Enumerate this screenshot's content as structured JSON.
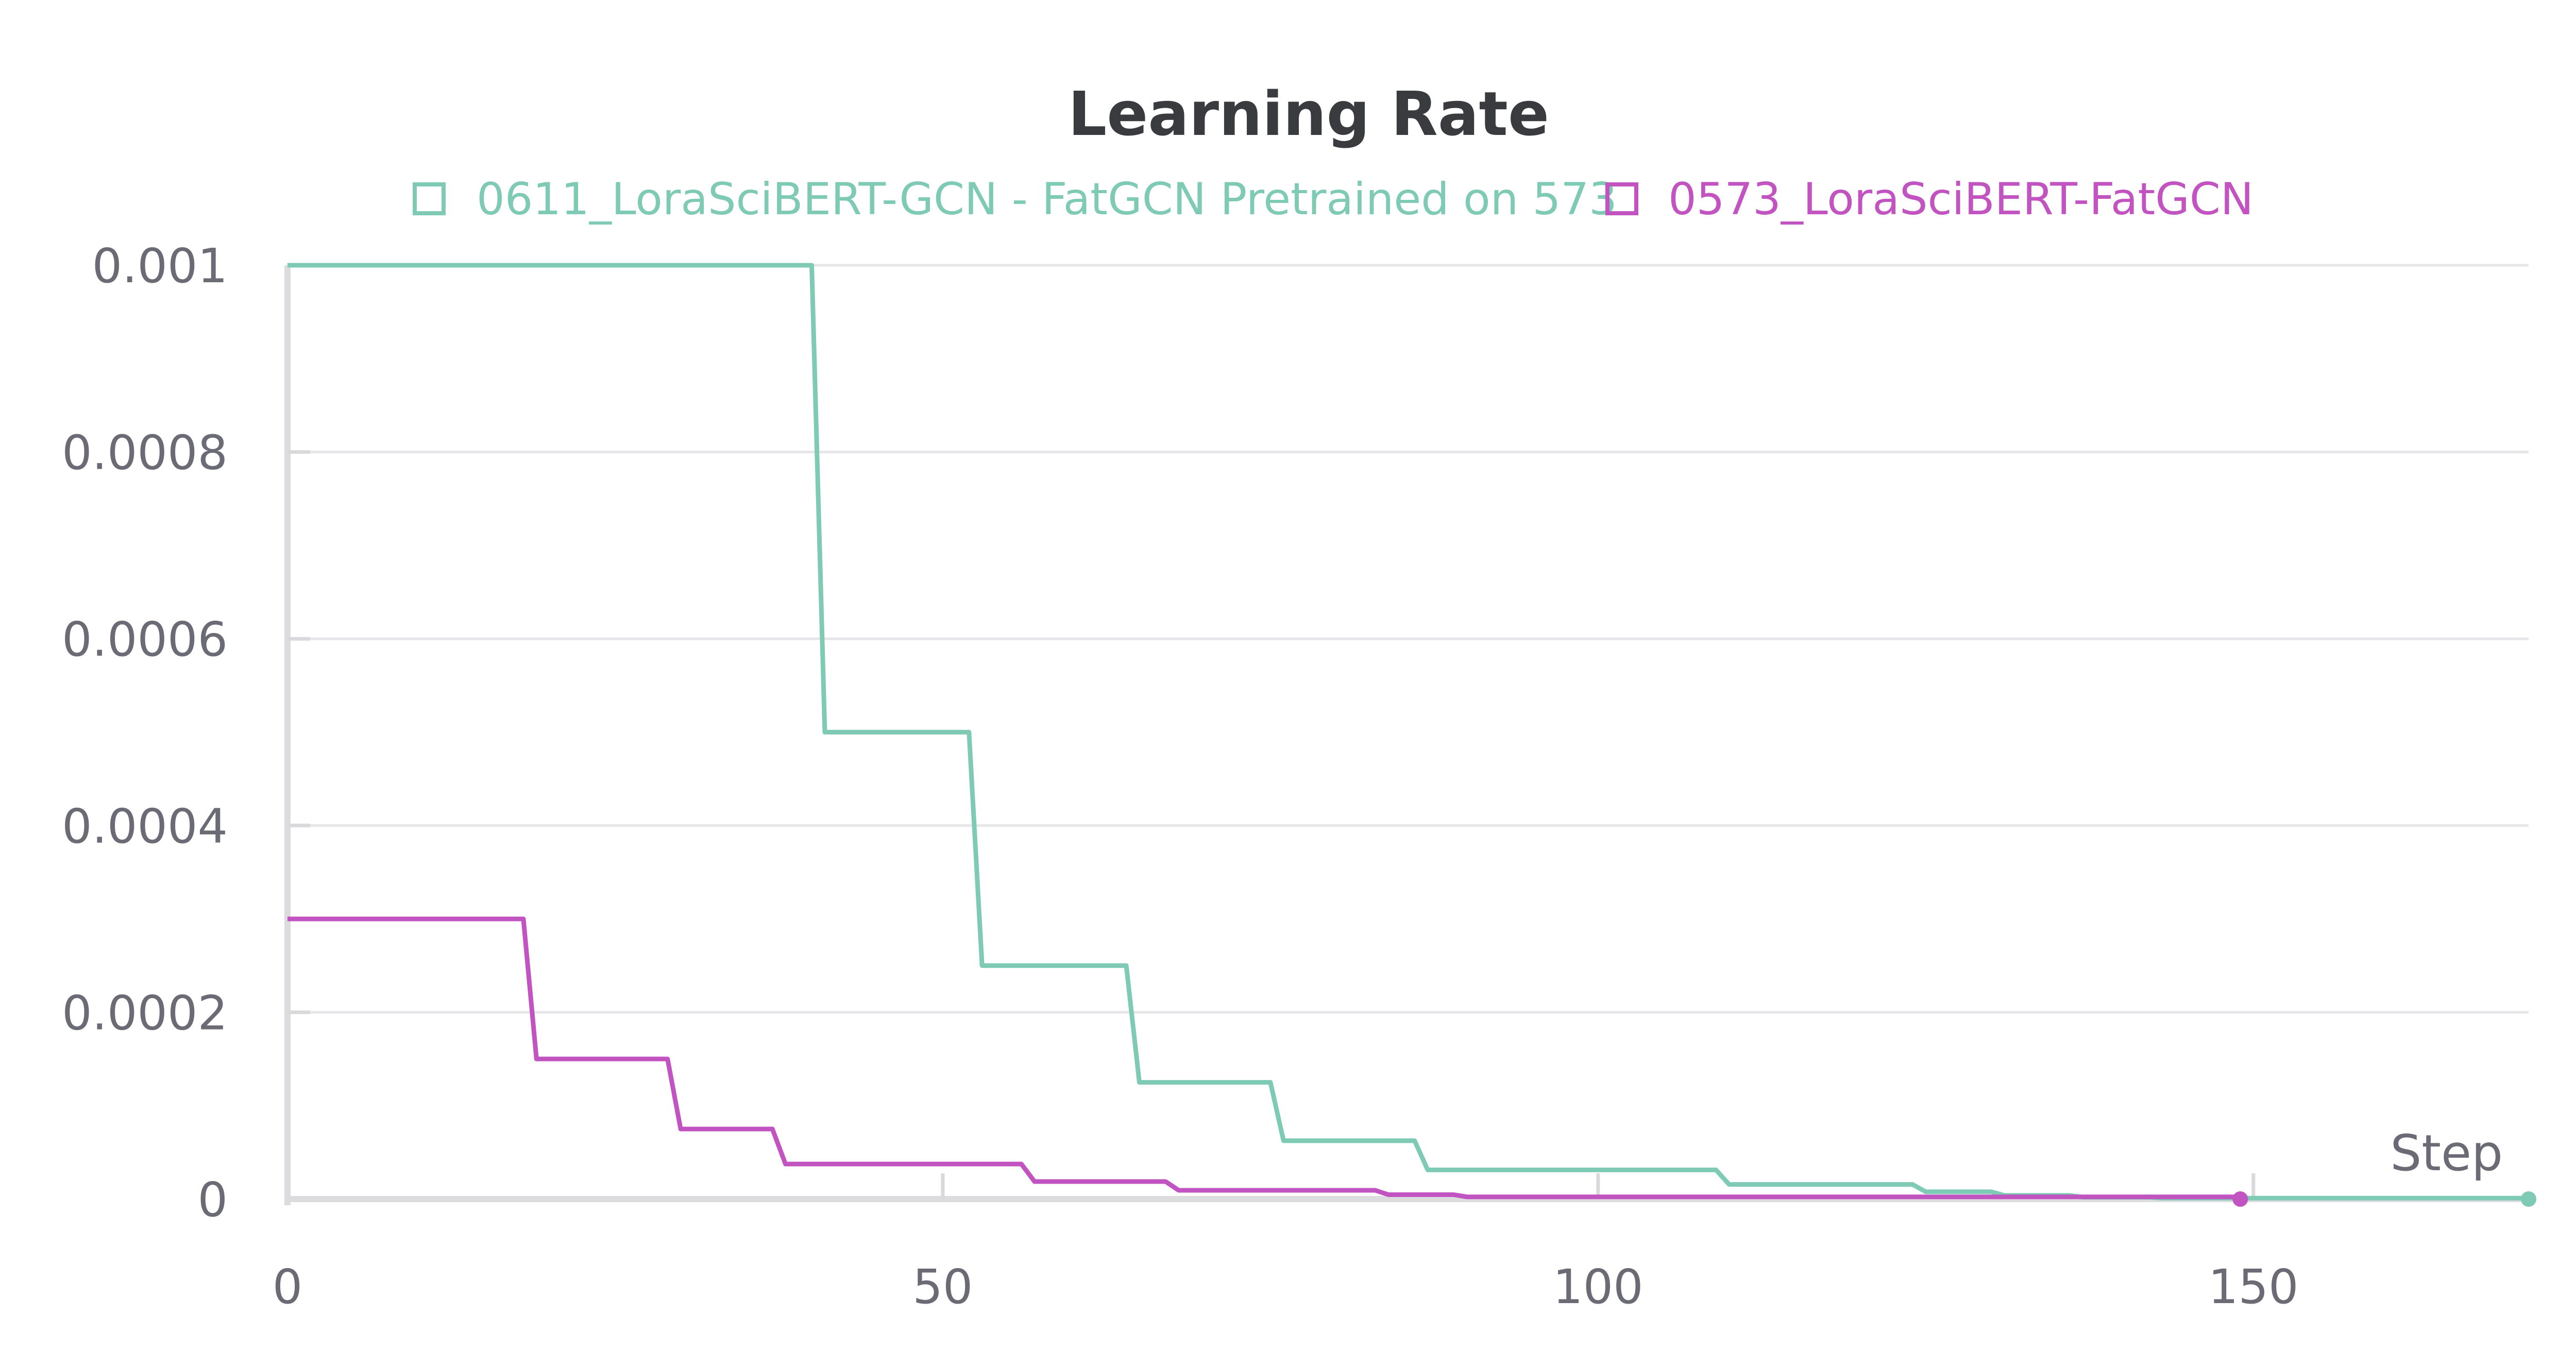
{
  "chart_data": {
    "type": "line",
    "title": "Learning Rate",
    "xlabel": "Step",
    "ylabel": "",
    "xlim": [
      0,
      171
    ],
    "ylim": [
      0,
      0.001
    ],
    "x_ticks": [
      "0",
      "50",
      "100",
      "150"
    ],
    "x_tick_values": [
      0,
      50,
      100,
      150
    ],
    "y_ticks": [
      "0",
      "0.0002",
      "0.0004",
      "0.0006",
      "0.0008",
      "0.001"
    ],
    "y_tick_values": [
      0,
      0.0002,
      0.0004,
      0.0006,
      0.0008,
      0.001
    ],
    "grid": true,
    "legend_position": "top",
    "series": [
      {
        "name": "0611_LoraSciBERT-GCN - FatGCN Pretrained on 573",
        "color": "#7fcab5",
        "step_x": [
          0,
          41,
          53,
          65,
          76,
          87,
          110,
          125,
          131,
          137,
          143,
          171
        ],
        "step_y": [
          0.001,
          0.0005,
          0.00025,
          0.000125,
          6.25e-05,
          3.125e-05,
          1.5625e-05,
          7.8125e-06,
          3.90625e-06,
          1.953125e-06,
          9.765625e-07,
          9.765625e-07
        ],
        "end_marker": true
      },
      {
        "name": "0573_LoraSciBERT-FatGCN",
        "color": "#c254c1",
        "step_x": [
          0,
          19,
          30,
          38,
          57,
          68,
          84,
          90,
          149
        ],
        "step_y": [
          0.0003,
          0.00015,
          7.5e-05,
          3.75e-05,
          1.875e-05,
          9.375e-06,
          4.6875e-06,
          2.34375e-06,
          2.34375e-06
        ],
        "end_marker": true
      }
    ]
  }
}
